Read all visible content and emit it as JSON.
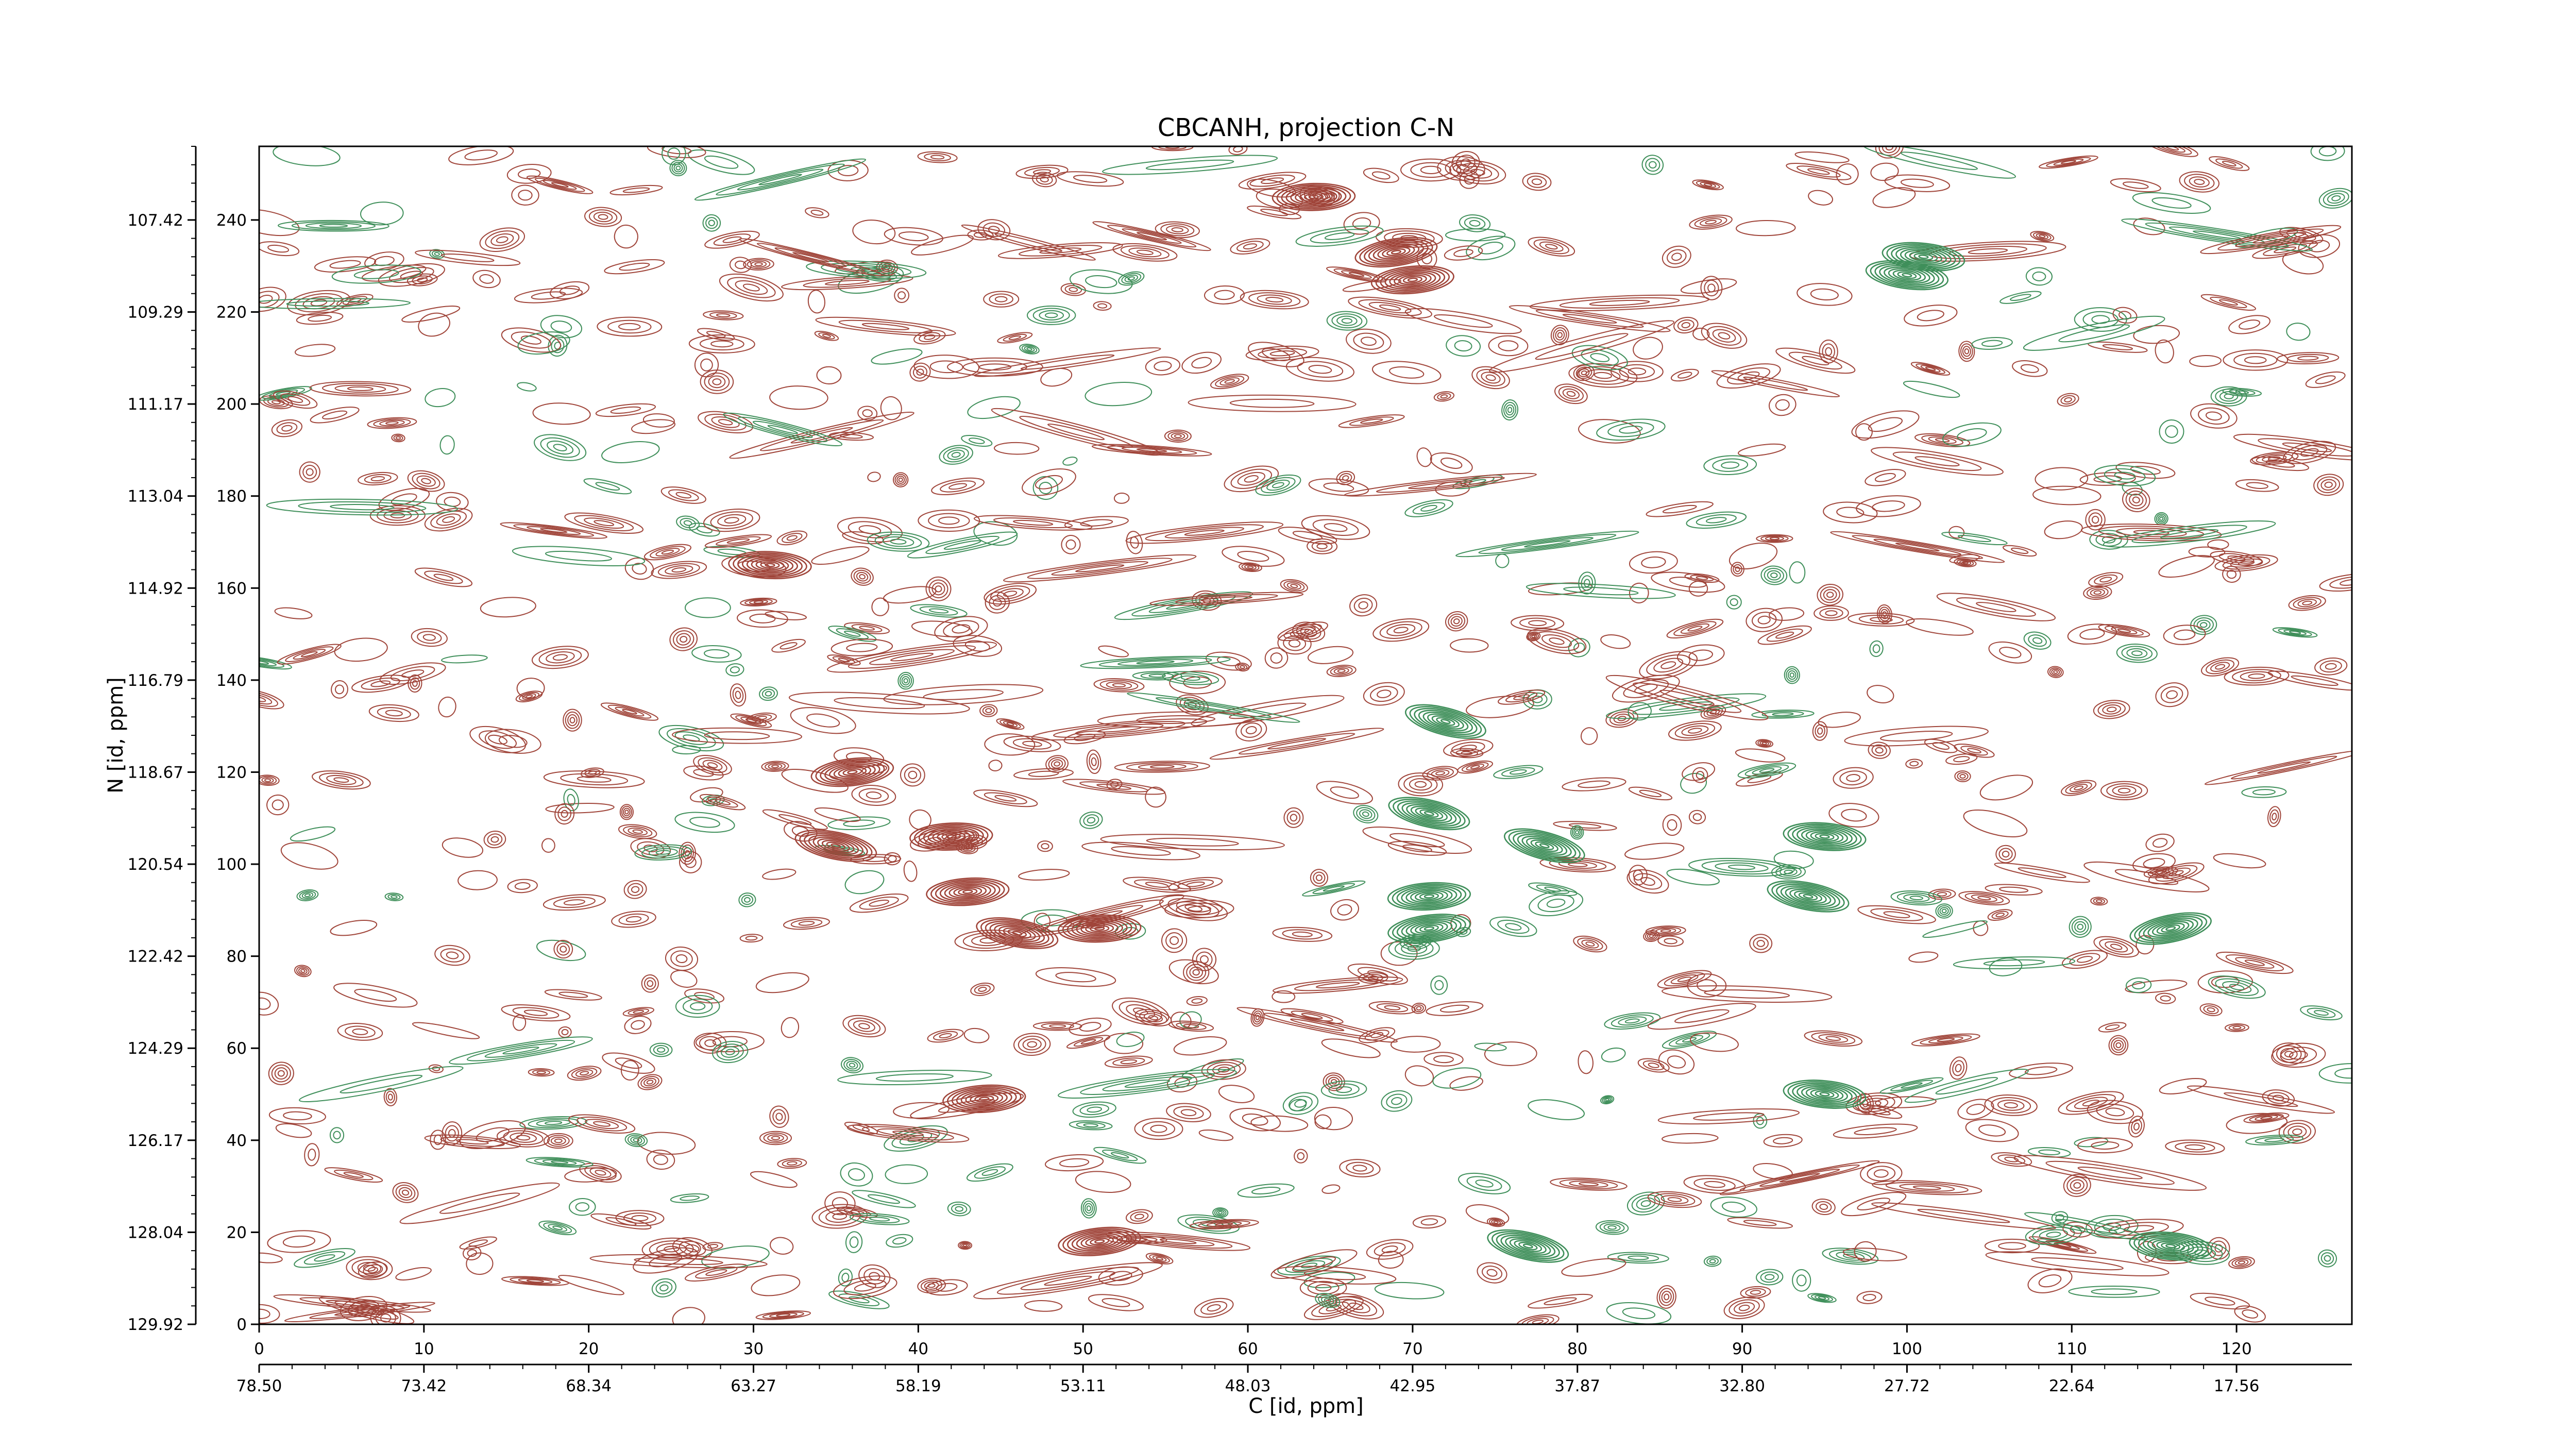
{
  "chart_data": {
    "type": "contour",
    "title": "CBCANH, projection C-N",
    "xlabel": "C [id, ppm]",
    "ylabel": "N [id, ppm]",
    "x_index_ticks": [
      "0",
      "10",
      "20",
      "30",
      "40",
      "50",
      "60",
      "70",
      "80",
      "90",
      "100",
      "110",
      "120"
    ],
    "x_ppm_ticks": [
      "78.50",
      "73.42",
      "68.34",
      "63.27",
      "58.19",
      "53.11",
      "48.03",
      "42.95",
      "37.87",
      "32.80",
      "27.72",
      "22.64",
      "17.56"
    ],
    "y_index_ticks": [
      "0",
      "20",
      "40",
      "60",
      "80",
      "100",
      "120",
      "140",
      "160",
      "180",
      "200",
      "220",
      "240"
    ],
    "y_ppm_ticks": [
      "129.92",
      "128.04",
      "126.17",
      "124.29",
      "122.42",
      "120.54",
      "118.67",
      "116.79",
      "114.92",
      "113.04",
      "111.17",
      "109.29",
      "107.42"
    ],
    "xlim": [
      0,
      127
    ],
    "ylim": [
      0,
      256
    ],
    "colors": {
      "positive": "#a0453a",
      "negative": "#3f8f5a"
    },
    "strong_peaks": [
      {
        "x": 35,
        "y": 104,
        "sign": "positive"
      },
      {
        "x": 43,
        "y": 94,
        "sign": "positive"
      },
      {
        "x": 46,
        "y": 85,
        "sign": "positive"
      },
      {
        "x": 51,
        "y": 86,
        "sign": "positive"
      },
      {
        "x": 44,
        "y": 49,
        "sign": "positive"
      },
      {
        "x": 51,
        "y": 18,
        "sign": "positive"
      },
      {
        "x": 69,
        "y": 233,
        "sign": "positive"
      },
      {
        "x": 70,
        "y": 227,
        "sign": "positive"
      },
      {
        "x": 64,
        "y": 245,
        "sign": "positive"
      },
      {
        "x": 31,
        "y": 165,
        "sign": "positive"
      },
      {
        "x": 42,
        "y": 106,
        "sign": "positive"
      },
      {
        "x": 36,
        "y": 120,
        "sign": "positive"
      },
      {
        "x": 101,
        "y": 232,
        "sign": "negative"
      },
      {
        "x": 100,
        "y": 228,
        "sign": "negative"
      },
      {
        "x": 71,
        "y": 93,
        "sign": "negative"
      },
      {
        "x": 71,
        "y": 86,
        "sign": "negative"
      },
      {
        "x": 78,
        "y": 104,
        "sign": "negative"
      },
      {
        "x": 94,
        "y": 93,
        "sign": "negative"
      },
      {
        "x": 95,
        "y": 106,
        "sign": "negative"
      },
      {
        "x": 95,
        "y": 50,
        "sign": "negative"
      },
      {
        "x": 116,
        "y": 86,
        "sign": "negative"
      },
      {
        "x": 116,
        "y": 17,
        "sign": "negative"
      },
      {
        "x": 72,
        "y": 131,
        "sign": "negative"
      },
      {
        "x": 77,
        "y": 17,
        "sign": "negative"
      },
      {
        "x": 71,
        "y": 111,
        "sign": "negative"
      }
    ]
  }
}
